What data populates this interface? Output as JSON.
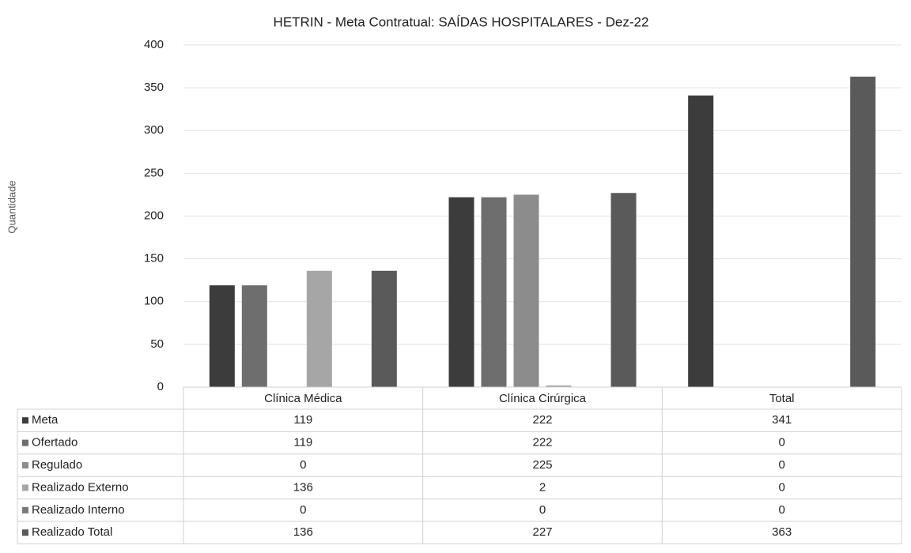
{
  "chart_data": {
    "type": "bar",
    "title": "HETRIN - Meta Contratual: SAÍDAS HOSPITALARES - Dez-22",
    "y_label": "Quantidade",
    "categories": [
      "Clínica Médica",
      "Clínica Cirúrgica",
      "Total"
    ],
    "series": [
      {
        "name": "Meta",
        "color": "#3c3c3c",
        "values": [
          119,
          222,
          341
        ]
      },
      {
        "name": "Ofertado",
        "color": "#6e6e6e",
        "values": [
          119,
          222,
          0
        ]
      },
      {
        "name": "Regulado",
        "color": "#8c8c8c",
        "values": [
          0,
          225,
          0
        ]
      },
      {
        "name": "Realizado Externo",
        "color": "#a6a6a6",
        "values": [
          136,
          2,
          0
        ]
      },
      {
        "name": "Realizado Interno",
        "color": "#7a7a7a",
        "values": [
          0,
          0,
          0
        ]
      },
      {
        "name": "Realizado Total",
        "color": "#5a5a5a",
        "values": [
          136,
          227,
          363
        ]
      }
    ],
    "ylim": [
      0,
      400
    ],
    "yticks": [
      0,
      50,
      100,
      150,
      200,
      250,
      300,
      350,
      400
    ],
    "grid": true,
    "data_table": true
  }
}
